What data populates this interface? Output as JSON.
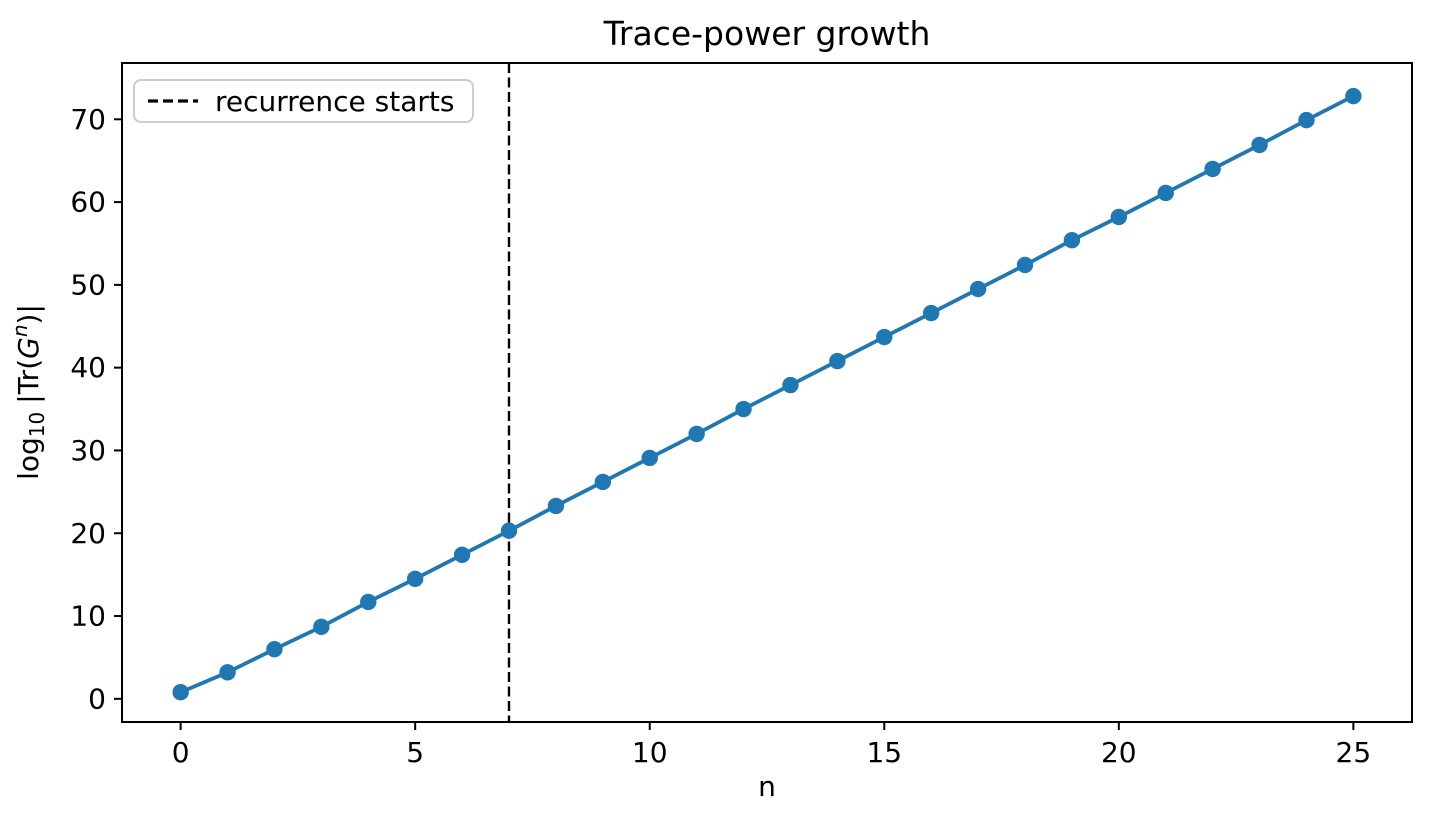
{
  "chart_data": {
    "type": "line",
    "title": "Trace-power growth",
    "xlabel": "n",
    "ylabel": "log10 |Tr(G^n)|",
    "ylabel_parts": {
      "pre": "log",
      "sub": "10",
      "mid": "|Tr(",
      "gsym": "G",
      "sup": "n",
      "post": ")|"
    },
    "x": [
      0,
      1,
      2,
      3,
      4,
      5,
      6,
      7,
      8,
      9,
      10,
      11,
      12,
      13,
      14,
      15,
      16,
      17,
      18,
      19,
      20,
      21,
      22,
      23,
      24,
      25
    ],
    "y": [
      0.8,
      3.2,
      6.0,
      8.7,
      11.7,
      14.5,
      17.4,
      20.3,
      23.3,
      26.2,
      29.1,
      32.0,
      35.0,
      37.9,
      40.8,
      43.7,
      46.6,
      49.5,
      52.4,
      55.4,
      58.2,
      61.1,
      64.0,
      66.9,
      69.9,
      72.8
    ],
    "xticks": [
      0,
      5,
      10,
      15,
      20,
      25
    ],
    "yticks": [
      0,
      10,
      20,
      30,
      40,
      50,
      60,
      70
    ],
    "xlim": [
      -1.25,
      26.25
    ],
    "ylim": [
      -2.8,
      76.8
    ],
    "grid": false,
    "line_color": "#1f77b4",
    "marker": "o",
    "vline": {
      "x": 7,
      "style": "dashed",
      "color": "#000000"
    },
    "legend": {
      "position": "upper left",
      "entries": [
        {
          "label": "recurrence starts",
          "style": "dashed-black-line"
        }
      ]
    }
  }
}
